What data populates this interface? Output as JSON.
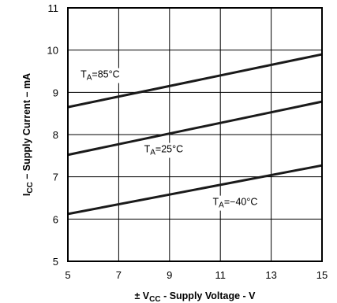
{
  "chart_data": {
    "type": "line",
    "xlabel": {
      "prefix": "± V",
      "sub": "CC",
      "rest": " - Supply Voltage - V"
    },
    "ylabel": {
      "main": "I",
      "sub": "CC",
      "rest": " – Supply Current – mA"
    },
    "xlim": [
      5,
      15
    ],
    "ylim": [
      5,
      11
    ],
    "xticks": [
      5,
      7,
      9,
      11,
      13,
      15
    ],
    "yticks": [
      5,
      6,
      7,
      8,
      9,
      10,
      11
    ],
    "grid": true,
    "series": [
      {
        "name": "TA=85°C",
        "label_main": "T",
        "label_sub": "A",
        "label_rest": "=85°C",
        "label_at": [
          5.5,
          9.35
        ],
        "x": [
          5,
          15
        ],
        "y": [
          8.65,
          9.9
        ]
      },
      {
        "name": "TA=25°C",
        "label_main": "T",
        "label_sub": "A",
        "label_rest": "=25°C",
        "label_at": [
          8.0,
          7.58
        ],
        "x": [
          5,
          15
        ],
        "y": [
          7.52,
          8.78
        ]
      },
      {
        "name": "TA=−40°C",
        "label_main": "T",
        "label_sub": "A",
        "label_rest": "=−40°C",
        "label_at": [
          10.7,
          6.33
        ],
        "x": [
          5,
          15
        ],
        "y": [
          6.12,
          7.27
        ]
      }
    ]
  }
}
